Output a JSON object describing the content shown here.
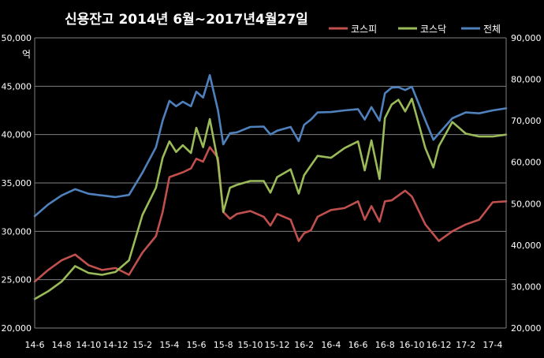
{
  "chart_data": {
    "type": "line",
    "title": "신용잔고  2014년 6월~2017년4월27일",
    "left_axis_unit": "억",
    "left_axis": {
      "ylim": [
        20000,
        50000
      ],
      "ticks": [
        20000,
        25000,
        30000,
        35000,
        40000,
        45000,
        50000
      ],
      "tick_labels": [
        "20,000",
        "25,000",
        "30,000",
        "35,000",
        "40,000",
        "45,000",
        "50,000"
      ]
    },
    "right_axis": {
      "ylim": [
        20000,
        90000
      ],
      "ticks": [
        20000,
        30000,
        40000,
        50000,
        60000,
        70000,
        80000,
        90000
      ],
      "tick_labels": [
        "20,000",
        "30,000",
        "40,000",
        "50,000",
        "60,000",
        "70,000",
        "80,000",
        "90,000"
      ]
    },
    "x_tick_labels": [
      "14-6",
      "14-8",
      "14-10",
      "14-12",
      "15-2",
      "15-4",
      "15-6",
      "15-8",
      "15-10",
      "15-12",
      "16-2",
      "16-4",
      "16-6",
      "16-8",
      "16-10",
      "16-12",
      "17-2",
      "17-4"
    ],
    "x_range": [
      0,
      35
    ],
    "grid": true,
    "legend_position": "top-right",
    "series": [
      {
        "name": "코스피",
        "color": "#c0504d",
        "axis": "left",
        "x": [
          0,
          1,
          2,
          3,
          4,
          5,
          6,
          7,
          8,
          9,
          9.5,
          10,
          11,
          11.6,
          12,
          12.5,
          13,
          13.6,
          14,
          14.5,
          15,
          16,
          17,
          17.5,
          18,
          19,
          19.6,
          20,
          20.5,
          21,
          22,
          23,
          24,
          24.5,
          25,
          25.6,
          26,
          26.5,
          27,
          27.5,
          28,
          29,
          29.6,
          30,
          31,
          32,
          33,
          34,
          35
        ],
        "values": [
          24800,
          26000,
          27000,
          27600,
          26500,
          26000,
          26200,
          25500,
          27800,
          29500,
          32000,
          35600,
          36100,
          36500,
          37500,
          37200,
          38700,
          37600,
          32000,
          31300,
          31800,
          32100,
          31500,
          30600,
          31800,
          31200,
          29000,
          29800,
          30100,
          31500,
          32200,
          32400,
          33100,
          31200,
          32600,
          31000,
          33100,
          33200,
          33700,
          34200,
          33600,
          30700,
          29700,
          29000,
          30000,
          30700,
          31200,
          33000,
          33100
        ]
      },
      {
        "name": "코스닥",
        "color": "#9bbb59",
        "axis": "left",
        "x": [
          0,
          1,
          2,
          3,
          4,
          5,
          6,
          7,
          8,
          9,
          9.5,
          10,
          10.5,
          11,
          11.6,
          12,
          12.5,
          13,
          13.6,
          14,
          14.5,
          15,
          16,
          17,
          17.5,
          18,
          19,
          19.6,
          20,
          20.5,
          21,
          22,
          23,
          24,
          24.5,
          25,
          25.6,
          26,
          26.5,
          27,
          27.5,
          28,
          29,
          29.6,
          30,
          31,
          32,
          33,
          34,
          35
        ],
        "values": [
          23000,
          23800,
          24800,
          26400,
          25700,
          25500,
          25800,
          27000,
          31700,
          34500,
          37600,
          39300,
          38200,
          38900,
          38100,
          40700,
          38700,
          41600,
          37200,
          32000,
          34500,
          34800,
          35200,
          35200,
          34000,
          35600,
          36400,
          33900,
          35800,
          36800,
          37800,
          37600,
          38600,
          39300,
          36300,
          39400,
          35400,
          41700,
          43100,
          43600,
          42400,
          43700,
          38600,
          36600,
          38800,
          41300,
          40100,
          39800,
          39800,
          40000
        ]
      },
      {
        "name": "전체",
        "color": "#4f81bd",
        "axis": "right",
        "x": [
          0,
          1,
          2,
          3,
          4,
          5,
          6,
          7,
          8,
          9,
          9.5,
          10,
          10.5,
          11,
          11.6,
          12,
          12.5,
          13,
          13.6,
          14,
          14.5,
          15,
          16,
          17,
          17.5,
          18,
          19,
          19.6,
          20,
          20.5,
          21,
          22,
          23,
          24,
          24.5,
          25,
          25.6,
          26,
          26.5,
          27,
          27.5,
          28,
          29,
          29.6,
          30,
          31,
          32,
          33,
          34,
          35
        ],
        "values": [
          47000,
          49800,
          52000,
          53500,
          52400,
          52000,
          51600,
          52100,
          57500,
          63600,
          70000,
          74800,
          73500,
          74600,
          73500,
          77000,
          75600,
          81000,
          72600,
          64300,
          67000,
          67200,
          68500,
          68600,
          66700,
          67600,
          68500,
          65100,
          69000,
          70300,
          72000,
          72100,
          72500,
          72800,
          70300,
          73300,
          70000,
          76600,
          78000,
          78100,
          77400,
          78200,
          70100,
          65400,
          66900,
          70600,
          72000,
          71800,
          72500,
          73000
        ]
      }
    ]
  }
}
